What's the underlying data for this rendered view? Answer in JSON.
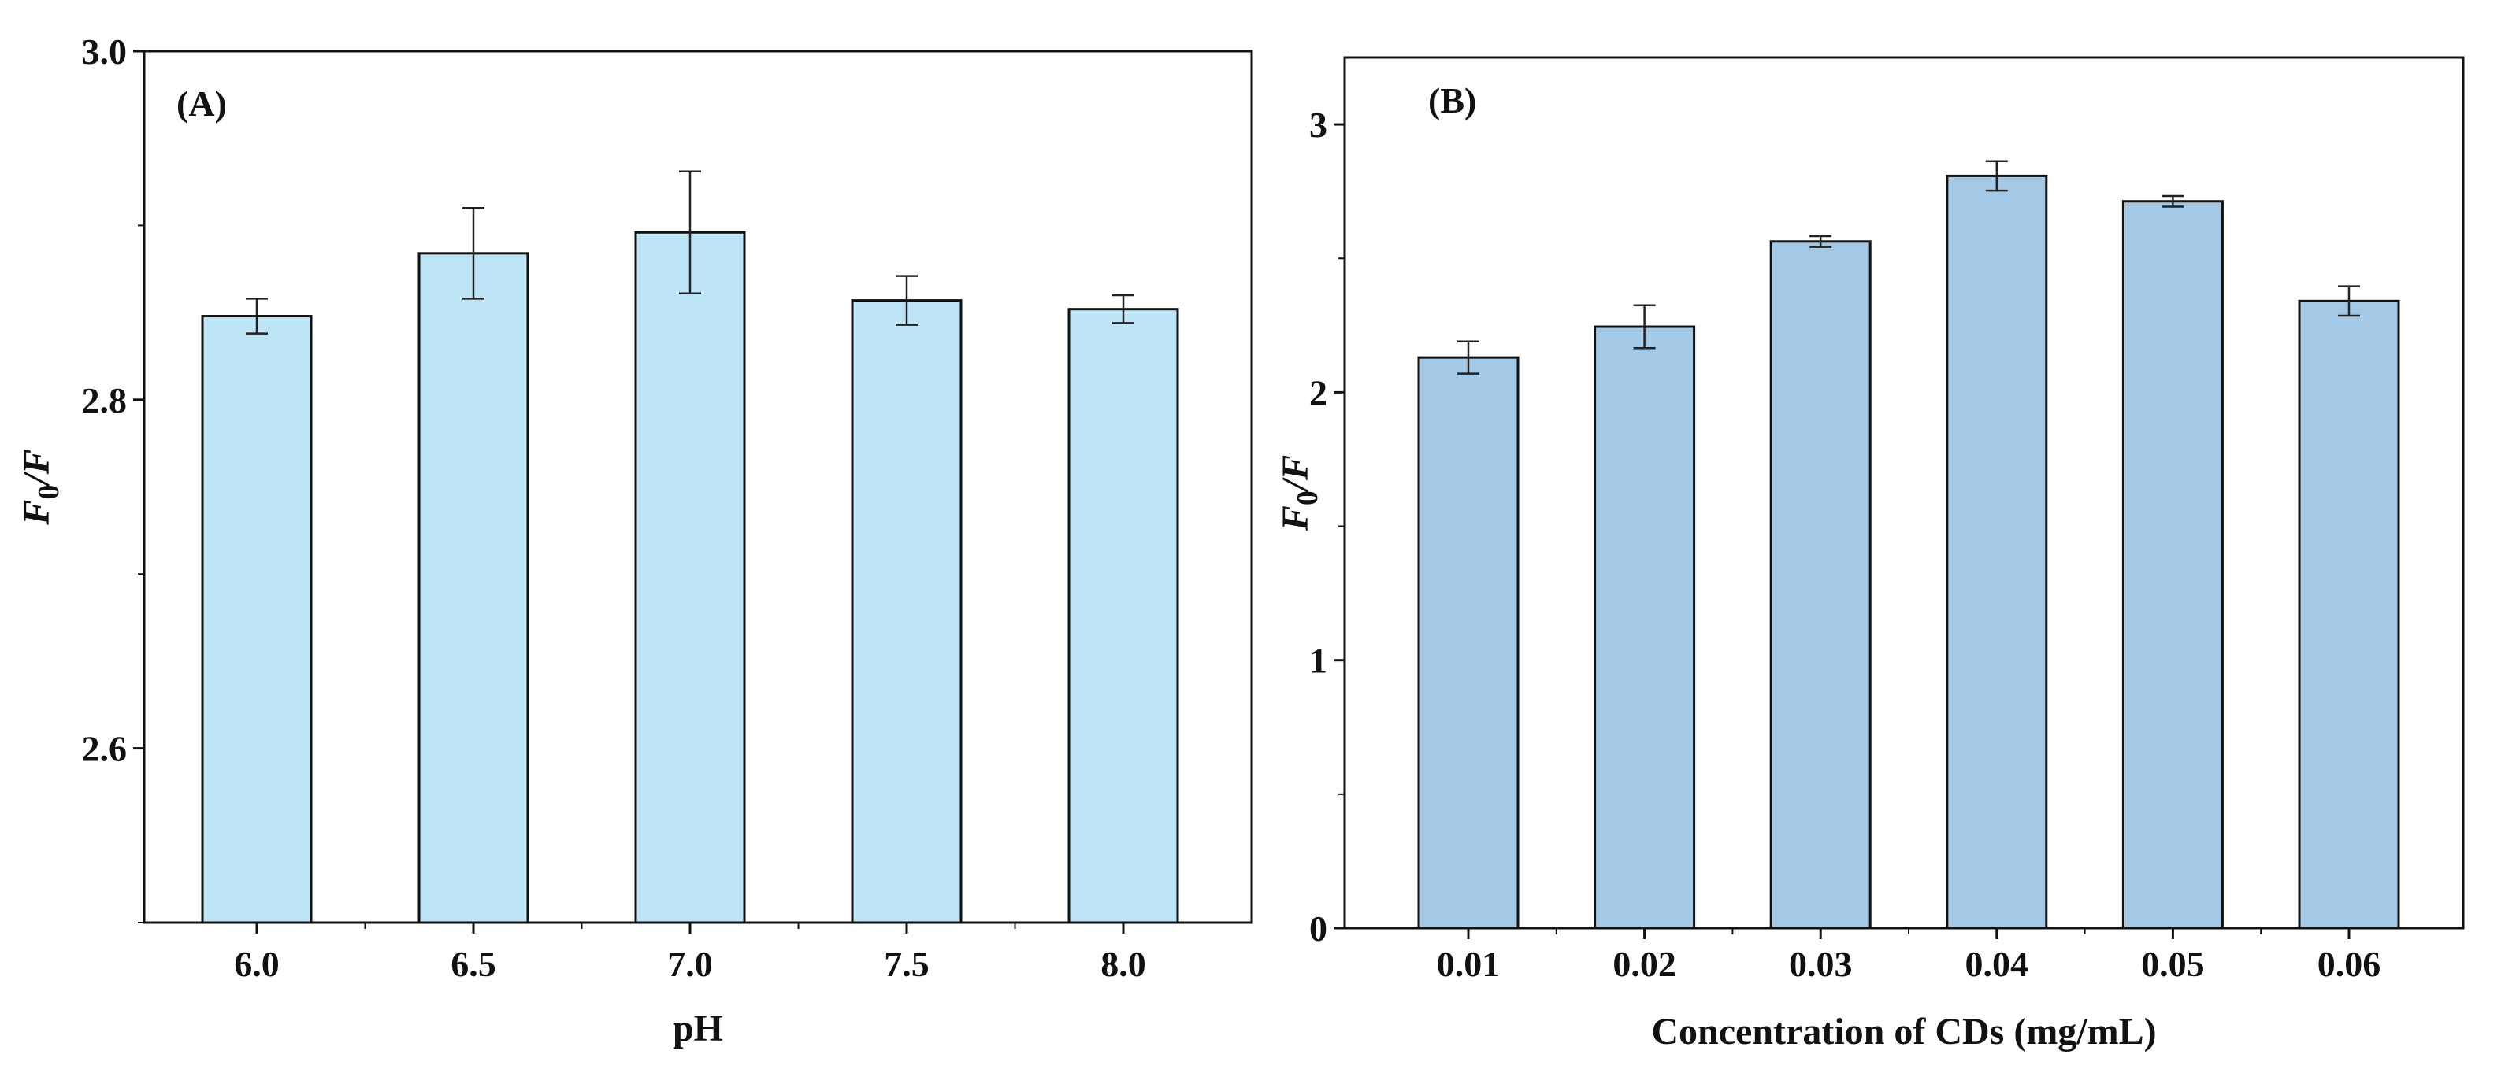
{
  "chart_data": [
    {
      "type": "bar",
      "panel_label": "(A)",
      "categories": [
        "6.0",
        "6.5",
        "7.0",
        "7.5",
        "8.0"
      ],
      "values": [
        2.848,
        2.884,
        2.896,
        2.857,
        2.852
      ],
      "errors": [
        0.01,
        0.026,
        0.035,
        0.014,
        0.008
      ],
      "xlabel": "pH",
      "ylabel": {
        "main": "F",
        "sub": "0",
        "rest": "/F"
      },
      "ylim": [
        2.5,
        3.0
      ],
      "yticks": [
        "2.6",
        "2.8",
        "3.0"
      ],
      "ytick_values": [
        2.6,
        2.8,
        3.0
      ],
      "minor_ytick_values": [
        2.5,
        2.7,
        2.9
      ],
      "bar_color": "#bde5f6",
      "grid": false
    },
    {
      "type": "bar",
      "panel_label": "(B)",
      "categories": [
        "0.01",
        "0.02",
        "0.03",
        "0.04",
        "0.05",
        "0.06"
      ],
      "values": [
        2.13,
        2.245,
        2.563,
        2.808,
        2.713,
        2.341
      ],
      "errors": [
        0.06,
        0.08,
        0.02,
        0.055,
        0.02,
        0.055
      ],
      "xlabel": "Concentration of CDs (mg/mL)",
      "ylabel": {
        "main": "F",
        "sub": "0",
        "rest": "/F"
      },
      "ylim": [
        0,
        3.25
      ],
      "yticks": [
        "0",
        "1",
        "2",
        "3"
      ],
      "ytick_values": [
        0,
        1,
        2,
        3
      ],
      "minor_ytick_values": [
        0.5,
        1.5,
        2.5
      ],
      "bar_color": "#a3c9e7",
      "grid": false
    }
  ]
}
